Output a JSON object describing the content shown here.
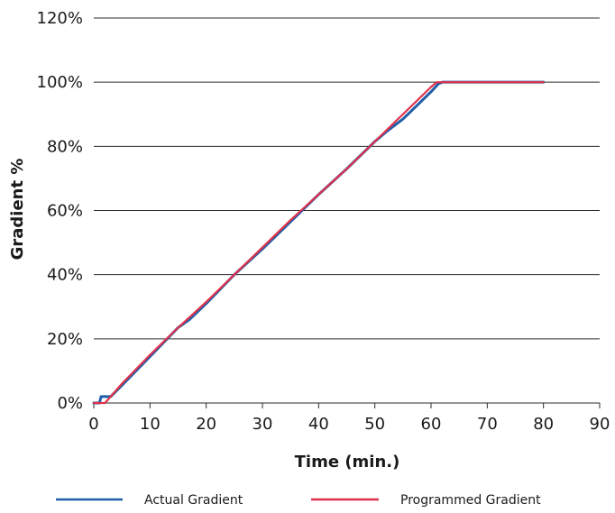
{
  "chart_data": {
    "type": "line",
    "title": "",
    "xlabel": "Time (min.)",
    "ylabel": "Gradient %",
    "xlim": [
      0,
      90
    ],
    "ylim": [
      0,
      120
    ],
    "x_ticks": [
      0,
      10,
      20,
      30,
      40,
      50,
      60,
      70,
      80,
      90
    ],
    "x_tick_labels": [
      "0",
      "10",
      "20",
      "30",
      "40",
      "50",
      "60",
      "70",
      "80",
      "90"
    ],
    "y_ticks": [
      0,
      20,
      40,
      60,
      80,
      100,
      120
    ],
    "y_tick_labels": [
      "0%",
      "20%",
      "40%",
      "60%",
      "80%",
      "100%",
      "120%"
    ],
    "grid": "horizontal",
    "legend_position": "bottom",
    "series": [
      {
        "name": "Actual Gradient",
        "color": "#1f5fa8",
        "points": [
          [
            0,
            0
          ],
          [
            1,
            0
          ],
          [
            1.3,
            2
          ],
          [
            3,
            2
          ],
          [
            5,
            5.5
          ],
          [
            10,
            14.5
          ],
          [
            15,
            23.5
          ],
          [
            17,
            26
          ],
          [
            20,
            31
          ],
          [
            25,
            40
          ],
          [
            30,
            48
          ],
          [
            35,
            56.5
          ],
          [
            40,
            65
          ],
          [
            45,
            73
          ],
          [
            50,
            81.5
          ],
          [
            52,
            84.5
          ],
          [
            55,
            88.5
          ],
          [
            60,
            97
          ],
          [
            61.3,
            99.5
          ],
          [
            62,
            100
          ],
          [
            80,
            100
          ]
        ]
      },
      {
        "name": "Programmed Gradient",
        "color": "#e0314b",
        "points": [
          [
            0,
            0
          ],
          [
            2,
            0
          ],
          [
            5,
            6
          ],
          [
            10,
            15
          ],
          [
            15,
            23.5
          ],
          [
            20,
            31.5
          ],
          [
            25,
            40
          ],
          [
            30,
            48.5
          ],
          [
            35,
            57
          ],
          [
            40,
            65
          ],
          [
            45,
            73
          ],
          [
            50,
            81.5
          ],
          [
            55,
            90
          ],
          [
            60,
            98.5
          ],
          [
            61,
            100
          ],
          [
            80,
            100
          ]
        ]
      }
    ]
  }
}
